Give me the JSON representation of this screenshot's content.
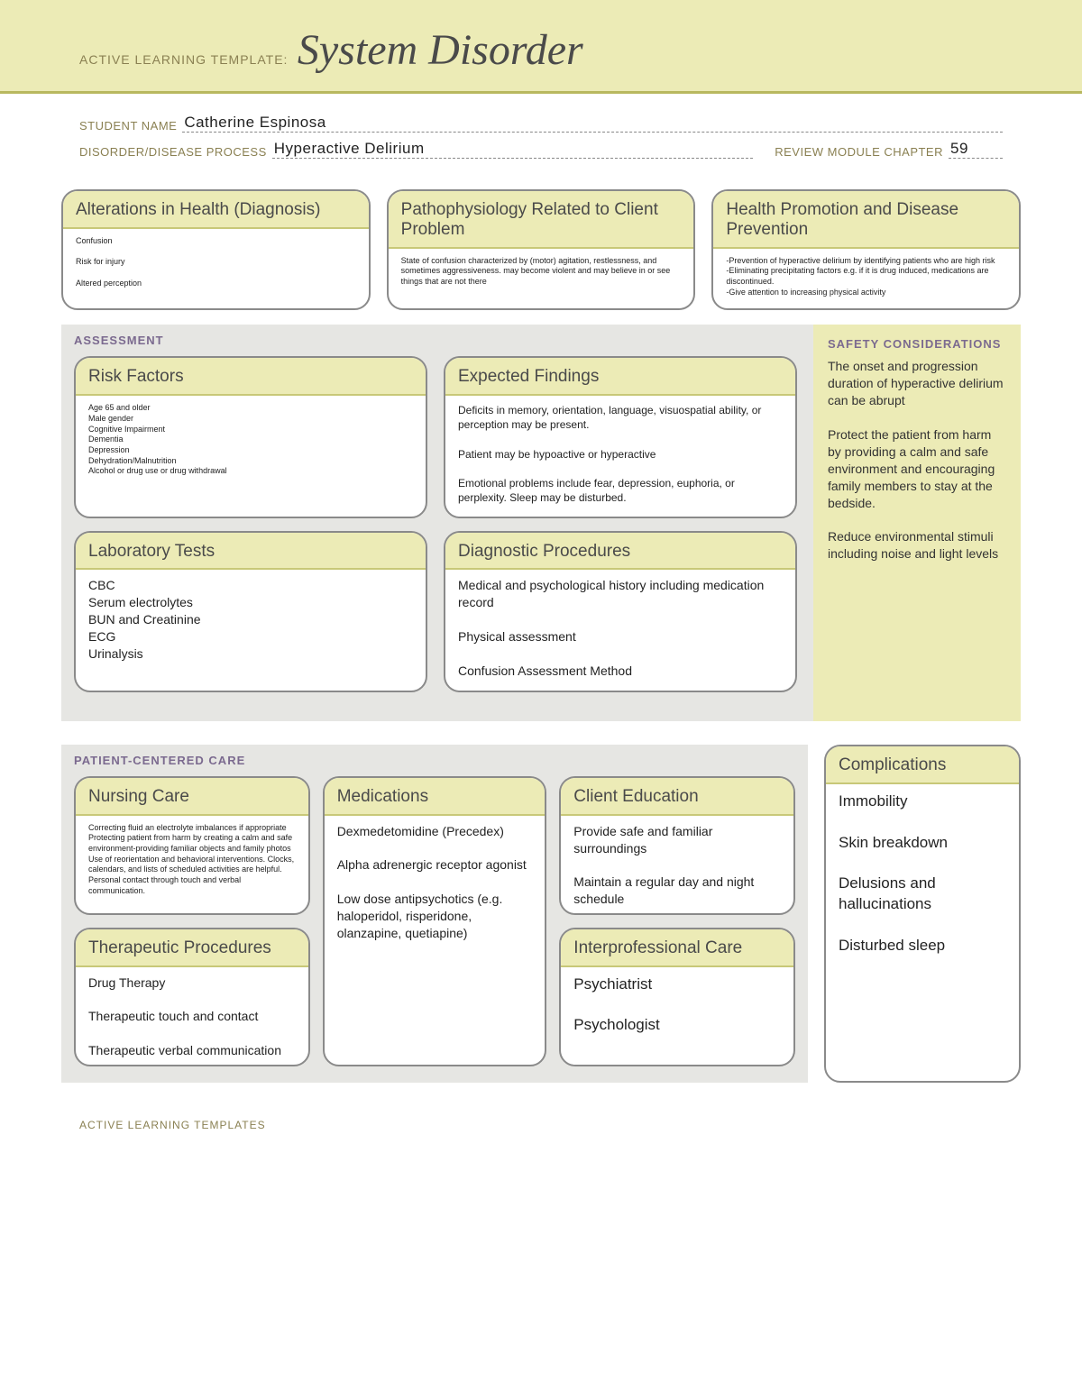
{
  "colors": {
    "band_bg": "#ecebb6",
    "band_border": "#b8b85f",
    "card_head_border": "#c8c878",
    "card_border": "#8a8a8a",
    "section_bg": "#e6e6e3",
    "label_text": "#8a8052",
    "section_title": "#7b6a8f"
  },
  "header": {
    "prefix": "ACTIVE LEARNING TEMPLATE:",
    "title": "System Disorder"
  },
  "meta": {
    "student_label": "STUDENT NAME",
    "student_value": "Catherine Espinosa",
    "process_label": "DISORDER/DISEASE PROCESS",
    "process_value": "Hyperactive Delirium",
    "chapter_label": "REVIEW MODULE CHAPTER",
    "chapter_value": "59"
  },
  "toprow": {
    "alterations": {
      "title": "Alterations in Health (Diagnosis)",
      "body": "Confusion\n\nRisk for injury\n\nAltered perception"
    },
    "patho": {
      "title": "Pathophysiology Related to Client Problem",
      "body": "State of confusion characterized by (motor) agitation, restlessness, and sometimes aggressiveness. may become violent and may believe in or see things that are not there"
    },
    "promo": {
      "title": "Health Promotion and Disease Prevention",
      "body": "-Prevention of hyperactive delirium by identifying patients who are high risk\n-Eliminating precipitating factors e.g. if it is drug induced, medications are discontinued.\n-Give attention to increasing physical activity"
    }
  },
  "assessment": {
    "label": "ASSESSMENT",
    "risk": {
      "title": "Risk Factors",
      "body": "Age 65 and older\nMale gender\nCognitive Impairment\nDementia\nDepression\nDehydration/Malnutrition\nAlcohol or drug use or drug withdrawal"
    },
    "findings": {
      "title": "Expected Findings",
      "body": "Deficits in memory, orientation, language, visuospatial ability, or perception may be present.\n\nPatient may be hypoactive or hyperactive\n\nEmotional problems include fear, depression, euphoria, or perplexity. Sleep may be disturbed."
    },
    "labs": {
      "title": "Laboratory Tests",
      "body": "CBC\nSerum electrolytes\nBUN and Creatinine\nECG\nUrinalysis"
    },
    "diag": {
      "title": "Diagnostic Procedures",
      "body": "Medical and psychological history including medication record\n\nPhysical assessment\n\nConfusion Assessment Method"
    },
    "safety": {
      "label": "SAFETY CONSIDERATIONS",
      "body": "The onset and progression duration of hyperactive delirium can be abrupt\n\nProtect the patient from harm by providing a calm and safe environment and encouraging family members to stay at the bedside.\n\nReduce environmental stimuli including noise and light levels"
    }
  },
  "pcc": {
    "label": "PATIENT-CENTERED CARE",
    "nursing": {
      "title": "Nursing Care",
      "body": "Correcting fluid an electrolyte imbalances if appropriate\nProtecting patient from harm by creating a calm and safe environment-providing familiar objects and family photos\nUse of reorientation and behavioral interventions. Clocks, calendars, and lists of scheduled activities are helpful. Personal contact through touch and verbal communication."
    },
    "therapeutic": {
      "title": "Therapeutic Procedures",
      "body": "Drug Therapy\n\nTherapeutic touch and contact\n\nTherapeutic verbal communication"
    },
    "meds": {
      "title": "Medications",
      "body": "Dexmedetomidine (Precedex)\n\nAlpha adrenergic receptor agonist\n\nLow dose antipsychotics (e.g. haloperidol, risperidone, olanzapine, quetiapine)"
    },
    "edu": {
      "title": "Client Education",
      "body": "Provide safe and familiar surroundings\n\nMaintain a regular day and night schedule"
    },
    "inter": {
      "title": "Interprofessional Care",
      "body": "Psychiatrist\n\nPsychologist"
    },
    "complications": {
      "title": "Complications",
      "body": "Immobility\n\nSkin breakdown\n\nDelusions and hallucinations\n\nDisturbed sleep"
    }
  },
  "footer": "ACTIVE LEARNING TEMPLATES"
}
